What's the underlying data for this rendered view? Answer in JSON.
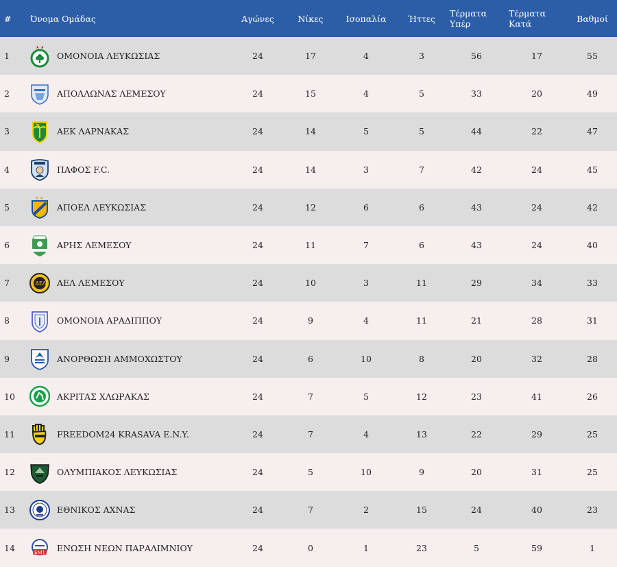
{
  "headers": {
    "rank": "#",
    "team": "Όνομα Ομάδας",
    "played": "Αγώνες",
    "wins": "Νίκες",
    "draws": "Ισοπαλία",
    "losses": "Ήττες",
    "goals_for_1": "Τέρματα",
    "goals_for_2": "Υπέρ",
    "goals_against_1": "Τέρματα",
    "goals_against_2": "Κατά",
    "points": "Βαθμοί"
  },
  "colors": {
    "header_bg": "#2c5ea8",
    "row_odd": "#dcdcdc",
    "row_even": "#f7eeee"
  },
  "rows": [
    {
      "rank": "1",
      "team": "ΟΜΟΝΟΙΑ ΛΕΥΚΩΣΙΑΣ",
      "logo": "omonoia-clover-crest",
      "played": "24",
      "wins": "17",
      "draws": "4",
      "losses": "3",
      "gf": "56",
      "ga": "17",
      "pts": "55"
    },
    {
      "rank": "2",
      "team": "ΑΠΟΛΛΩΝΑΣ ΛΕΜΕΣΟΥ",
      "logo": "apollon-shield-crest",
      "played": "24",
      "wins": "15",
      "draws": "4",
      "losses": "5",
      "gf": "33",
      "ga": "20",
      "pts": "49"
    },
    {
      "rank": "3",
      "team": "ΑΕΚ ΛΑΡΝΑΚΑΣ",
      "logo": "aek-palm-crest",
      "played": "24",
      "wins": "14",
      "draws": "5",
      "losses": "5",
      "gf": "44",
      "ga": "22",
      "pts": "47"
    },
    {
      "rank": "4",
      "team": "ΠΑΦΟΣ F.C.",
      "logo": "pafos-shield-crest",
      "played": "24",
      "wins": "14",
      "draws": "3",
      "losses": "7",
      "gf": "42",
      "ga": "24",
      "pts": "45"
    },
    {
      "rank": "5",
      "team": "ΑΠΟΕΛ ΛΕΥΚΩΣΙΑΣ",
      "logo": "apoel-shield-crest",
      "played": "24",
      "wins": "12",
      "draws": "6",
      "losses": "6",
      "gf": "43",
      "ga": "24",
      "pts": "42"
    },
    {
      "rank": "6",
      "team": "ΑΡΗΣ ΛΕΜΕΣΟΥ",
      "logo": "aris-shield-crest",
      "played": "24",
      "wins": "11",
      "draws": "7",
      "losses": "6",
      "gf": "43",
      "ga": "24",
      "pts": "40"
    },
    {
      "rank": "7",
      "team": "ΑΕΛ ΛΕΜΕΣΟΥ",
      "logo": "ael-round-crest",
      "played": "24",
      "wins": "10",
      "draws": "3",
      "losses": "11",
      "gf": "29",
      "ga": "34",
      "pts": "33"
    },
    {
      "rank": "8",
      "team": "ΟΜΟΝΟΙΑ ΑΡΑΔΙΠΠΟΥ",
      "logo": "omonoia-aradippou-crest",
      "played": "24",
      "wins": "9",
      "draws": "4",
      "losses": "11",
      "gf": "21",
      "ga": "28",
      "pts": "31"
    },
    {
      "rank": "9",
      "team": "ΑΝΟΡΘΩΣΗ ΑΜΜΟΧΩΣΤΟΥ",
      "logo": "anorthosis-shield-crest",
      "played": "24",
      "wins": "6",
      "draws": "10",
      "losses": "8",
      "gf": "20",
      "ga": "32",
      "pts": "28"
    },
    {
      "rank": "10",
      "team": "ΑΚΡΙΤΑΣ ΧΛΩΡΑΚΑΣ",
      "logo": "akritas-round-crest",
      "played": "24",
      "wins": "7",
      "draws": "5",
      "losses": "12",
      "gf": "23",
      "ga": "41",
      "pts": "26"
    },
    {
      "rank": "11",
      "team": "FREEDOM24 KRASAVA E.N.Y.",
      "logo": "krasava-hand-crest",
      "played": "24",
      "wins": "7",
      "draws": "4",
      "losses": "13",
      "gf": "22",
      "ga": "29",
      "pts": "25"
    },
    {
      "rank": "12",
      "team": "ΟΛΥΜΠΙΑΚΟΣ ΛΕΥΚΩΣΙΑΣ",
      "logo": "olympiakos-shield-crest",
      "played": "24",
      "wins": "5",
      "draws": "10",
      "losses": "9",
      "gf": "20",
      "ga": "31",
      "pts": "25"
    },
    {
      "rank": "13",
      "team": "ΕΘΝΙΚΟΣ ΑΧΝΑΣ",
      "logo": "ethnikos-round-crest",
      "played": "24",
      "wins": "7",
      "draws": "2",
      "losses": "15",
      "gf": "24",
      "ga": "40",
      "pts": "23"
    },
    {
      "rank": "14",
      "team": "ΕΝΩΣΗ ΝΕΩΝ ΠΑΡΑΛΙΜΝΙΟΥ",
      "logo": "enp-round-crest",
      "played": "24",
      "wins": "0",
      "draws": "1",
      "losses": "23",
      "gf": "5",
      "ga": "59",
      "pts": "1"
    }
  ]
}
